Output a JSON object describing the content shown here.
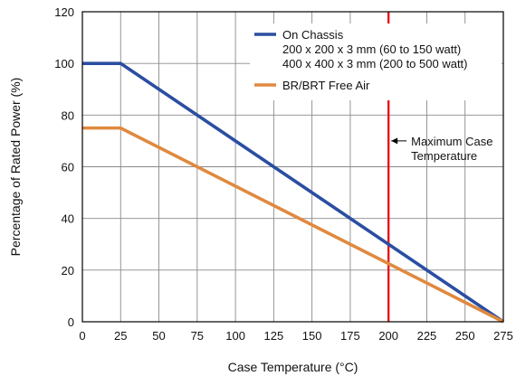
{
  "chart_data": {
    "type": "line",
    "title": "",
    "xlabel": "Case Temperature (°C)",
    "ylabel": "Percentage of Rated Power (%)",
    "xlim": [
      0,
      275
    ],
    "ylim": [
      0,
      120
    ],
    "x_ticks": [
      0,
      25,
      50,
      75,
      100,
      125,
      150,
      175,
      200,
      225,
      250,
      275
    ],
    "y_ticks": [
      0,
      20,
      40,
      60,
      80,
      100,
      120
    ],
    "grid": true,
    "legend_position": "top-right",
    "series": [
      {
        "name": "On Chassis",
        "legend_lines": [
          "On Chassis",
          "200 x 200 x 3 mm (60 to 150 watt)",
          "400 x 400 x 3 mm (200 to 500 watt)"
        ],
        "color": "#2b4ea2",
        "x": [
          0,
          25,
          275
        ],
        "y": [
          100,
          100,
          0
        ]
      },
      {
        "name": "BR/BRT Free Air",
        "legend_lines": [
          "BR/BRT Free Air"
        ],
        "color": "#e0893f",
        "x": [
          0,
          25,
          275
        ],
        "y": [
          75,
          75,
          0
        ]
      }
    ],
    "annotations": [
      {
        "type": "vertical-line",
        "x": 200,
        "color": "#e8131b",
        "label_lines": [
          "Maximum Case",
          "Temperature"
        ],
        "label_y": 70
      }
    ]
  }
}
